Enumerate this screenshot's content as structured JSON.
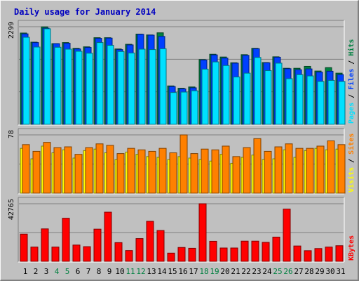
{
  "title": "Daily usage for January 2014",
  "colors": {
    "background": "#c0c0c0",
    "hits": "#008040",
    "files": "#0040ff",
    "pages": "#00e0ff",
    "visits": "#ffff00",
    "sites": "#ff8000",
    "kbytes": "#ff0000",
    "weekend_label": "#008040",
    "title": "#0000c0"
  },
  "chart_data": [
    {
      "type": "bar",
      "categories": [
        "1",
        "2",
        "3",
        "4",
        "5",
        "6",
        "7",
        "8",
        "9",
        "10",
        "11",
        "12",
        "13",
        "14",
        "15",
        "16",
        "17",
        "18",
        "19",
        "20",
        "21",
        "22",
        "23",
        "24",
        "25",
        "26",
        "27",
        "28",
        "29",
        "30",
        "31"
      ],
      "weekend_days": [
        "4",
        "5",
        "11",
        "12",
        "18",
        "19",
        "25",
        "26"
      ],
      "max_label": "2299",
      "ylim": [
        0,
        2299
      ],
      "legend_labels": [
        {
          "text": "Hits",
          "color": "#008040"
        },
        {
          "text": "Files",
          "color": "#0040ff"
        },
        {
          "text": "Pages",
          "color": "#00e0ff"
        }
      ],
      "series": [
        {
          "name": "Hits",
          "values": [
            2150,
            1935,
            2295,
            1900,
            1925,
            1790,
            1825,
            2040,
            2040,
            1775,
            1885,
            2125,
            2105,
            2155,
            905,
            850,
            880,
            1525,
            1650,
            1585,
            1450,
            1640,
            1790,
            1455,
            1590,
            1320,
            1320,
            1365,
            1255,
            1335,
            1205
          ]
        },
        {
          "name": "Files",
          "values": [
            2130,
            1925,
            2265,
            1900,
            1910,
            1775,
            1810,
            2025,
            2030,
            1760,
            1870,
            2120,
            2100,
            2070,
            890,
            835,
            860,
            1515,
            1635,
            1560,
            1440,
            1625,
            1780,
            1450,
            1580,
            1310,
            1285,
            1305,
            1230,
            1250,
            1170
          ]
        },
        {
          "name": "Pages",
          "values": [
            2050,
            1820,
            2250,
            1815,
            1770,
            1720,
            1675,
            1925,
            1860,
            1715,
            1680,
            1770,
            1760,
            1780,
            750,
            760,
            790,
            1300,
            1470,
            1385,
            1115,
            1205,
            1575,
            1265,
            1440,
            1075,
            1170,
            1140,
            1010,
            1035,
            1010
          ]
        }
      ]
    },
    {
      "type": "bar",
      "categories": [
        "1",
        "2",
        "3",
        "4",
        "5",
        "6",
        "7",
        "8",
        "9",
        "10",
        "11",
        "12",
        "13",
        "14",
        "15",
        "16",
        "17",
        "18",
        "19",
        "20",
        "21",
        "22",
        "23",
        "24",
        "25",
        "26",
        "27",
        "28",
        "29",
        "30",
        "31"
      ],
      "max_label": "78",
      "ylim": [
        0,
        78
      ],
      "legend_labels": [
        {
          "text": "Sites",
          "color": "#ff8000"
        },
        {
          "text": "Visits",
          "color": "#ffff00"
        }
      ],
      "series": [
        {
          "name": "Visits",
          "values": [
            60,
            46,
            63,
            54,
            58,
            47,
            57,
            59,
            54,
            45,
            55,
            52,
            49,
            48,
            45,
            49,
            47,
            45,
            43,
            52,
            40,
            48,
            51,
            45,
            46,
            58,
            48,
            57,
            60,
            58,
            59
          ]
        },
        {
          "name": "Sites",
          "values": [
            65,
            56,
            68,
            61,
            62,
            52,
            61,
            66,
            64,
            53,
            60,
            58,
            56,
            60,
            54,
            78,
            53,
            59,
            58,
            63,
            49,
            61,
            73,
            56,
            62,
            66,
            60,
            60,
            63,
            70,
            65
          ]
        }
      ]
    },
    {
      "type": "bar",
      "categories": [
        "1",
        "2",
        "3",
        "4",
        "5",
        "6",
        "7",
        "8",
        "9",
        "10",
        "11",
        "12",
        "13",
        "14",
        "15",
        "16",
        "17",
        "18",
        "19",
        "20",
        "21",
        "22",
        "23",
        "24",
        "25",
        "26",
        "27",
        "28",
        "29",
        "30",
        "31"
      ],
      "max_label": "42765",
      "ylim": [
        0,
        42765
      ],
      "legend_labels": [
        {
          "text": "KBytes",
          "color": "#ff0000"
        }
      ],
      "series": [
        {
          "name": "KBytes",
          "values": [
            20200,
            10600,
            24100,
            10600,
            32000,
            12100,
            10900,
            23900,
            36500,
            13900,
            8000,
            16900,
            29700,
            22900,
            6100,
            10300,
            9700,
            42765,
            14900,
            9900,
            9900,
            15000,
            15000,
            14100,
            18000,
            38800,
            11400,
            7900,
            9500,
            10600,
            11600
          ]
        }
      ]
    }
  ]
}
